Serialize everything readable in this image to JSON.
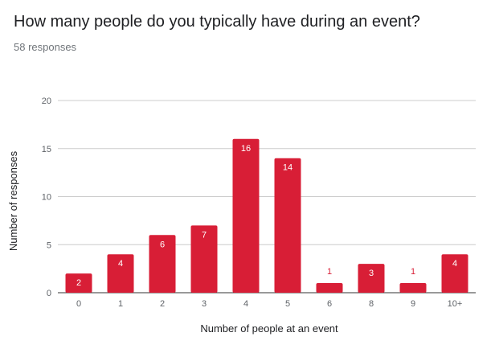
{
  "question": {
    "title": "How many people do you typically have during an event?",
    "responses_text": "58 responses"
  },
  "colors": {
    "bar": "#d81e36",
    "grid": "#cccccc",
    "baseline": "#333333",
    "label_inside": "#ffffff",
    "label_outside": "#d81e36"
  },
  "chart_data": {
    "type": "bar",
    "title": "How many people do you typically have during an event?",
    "xlabel": "Number of people at an event",
    "ylabel": "Number of responses",
    "categories": [
      "0",
      "1",
      "2",
      "3",
      "4",
      "5",
      "6",
      "8",
      "9",
      "10+"
    ],
    "values": [
      2,
      4,
      6,
      7,
      16,
      14,
      1,
      3,
      1,
      4
    ],
    "ylim": [
      0,
      20
    ],
    "yticks": [
      0,
      5,
      10,
      15,
      20
    ],
    "grid": true,
    "legend": "none"
  }
}
